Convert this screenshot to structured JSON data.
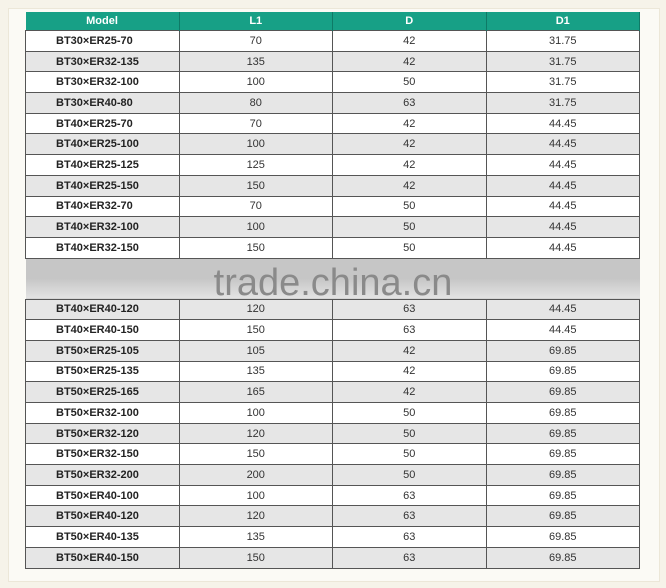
{
  "table": {
    "headers": [
      "Model",
      "L1",
      "D",
      "D1"
    ],
    "rows_top": [
      [
        "BT30×ER25-70",
        "70",
        "42",
        "31.75"
      ],
      [
        "BT30×ER32-135",
        "135",
        "42",
        "31.75"
      ],
      [
        "BT30×ER32-100",
        "100",
        "50",
        "31.75"
      ],
      [
        "BT30×ER40-80",
        "80",
        "63",
        "31.75"
      ],
      [
        "BT40×ER25-70",
        "70",
        "42",
        "44.45"
      ],
      [
        "BT40×ER25-100",
        "100",
        "42",
        "44.45"
      ],
      [
        "BT40×ER25-125",
        "125",
        "42",
        "44.45"
      ],
      [
        "BT40×ER25-150",
        "150",
        "42",
        "44.45"
      ],
      [
        "BT40×ER32-70",
        "70",
        "50",
        "44.45"
      ],
      [
        "BT40×ER32-100",
        "100",
        "50",
        "44.45"
      ],
      [
        "BT40×ER32-150",
        "150",
        "50",
        "44.45"
      ]
    ],
    "rows_bottom": [
      [
        "BT40×ER40-120",
        "120",
        "63",
        "44.45"
      ],
      [
        "BT40×ER40-150",
        "150",
        "63",
        "44.45"
      ],
      [
        "BT50×ER25-105",
        "105",
        "42",
        "69.85"
      ],
      [
        "BT50×ER25-135",
        "135",
        "42",
        "69.85"
      ],
      [
        "BT50×ER25-165",
        "165",
        "42",
        "69.85"
      ],
      [
        "BT50×ER32-100",
        "100",
        "50",
        "69.85"
      ],
      [
        "BT50×ER32-120",
        "120",
        "50",
        "69.85"
      ],
      [
        "BT50×ER32-150",
        "150",
        "50",
        "69.85"
      ],
      [
        "BT50×ER32-200",
        "200",
        "50",
        "69.85"
      ],
      [
        "BT50×ER40-100",
        "100",
        "63",
        "69.85"
      ],
      [
        "BT50×ER40-120",
        "120",
        "63",
        "69.85"
      ],
      [
        "BT50×ER40-135",
        "135",
        "63",
        "69.85"
      ],
      [
        "BT50×ER40-150",
        "150",
        "63",
        "69.85"
      ]
    ]
  },
  "watermark": "trade.china.cn",
  "colors": {
    "header": "#17a086",
    "alt_row": "#e6e6e6"
  }
}
